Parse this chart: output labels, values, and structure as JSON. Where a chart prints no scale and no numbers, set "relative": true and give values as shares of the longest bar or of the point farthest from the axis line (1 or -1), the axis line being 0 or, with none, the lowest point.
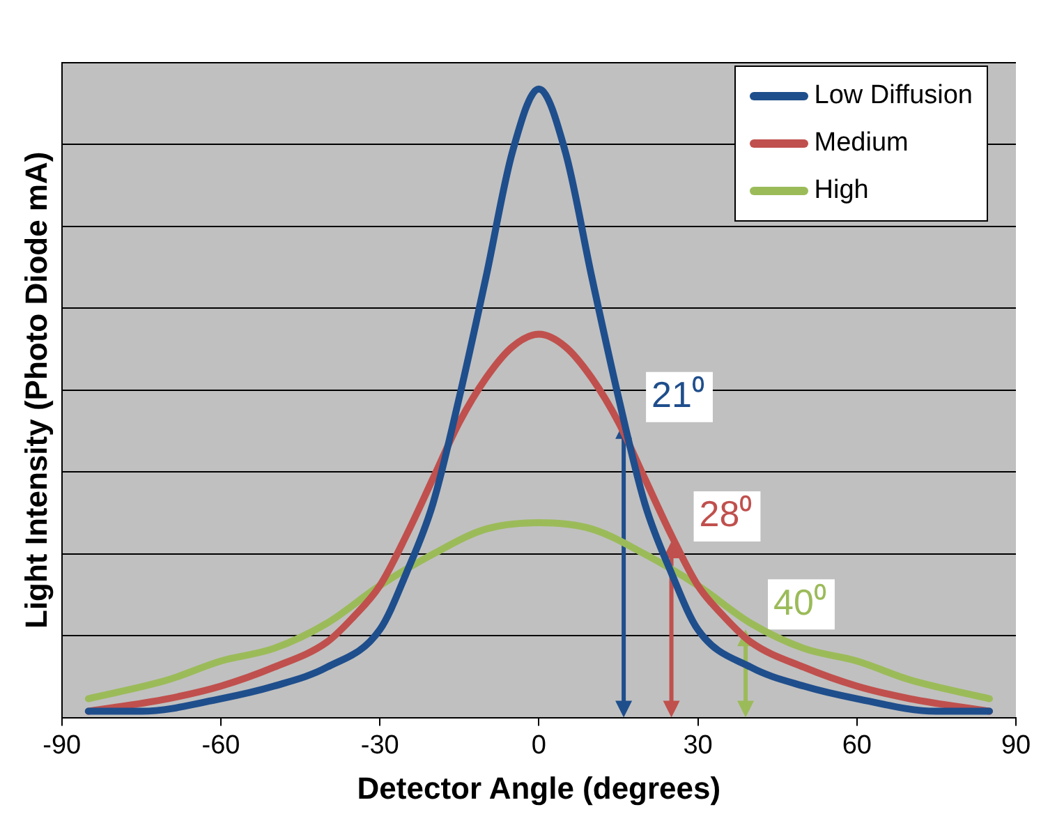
{
  "chart_data": {
    "type": "line",
    "xlabel": "Detector Angle (degrees)",
    "ylabel": "Light Intensity (Photo Diode mA)",
    "relative": true,
    "xlim": [
      -90,
      90
    ],
    "xticks": [
      -90,
      -60,
      -30,
      0,
      30,
      60,
      90
    ],
    "grid": "y",
    "legend": "top right",
    "marker": "none",
    "line_style": "solid",
    "series": [
      {
        "name": "Low Diffusion",
        "color": "#1f4e8c",
        "x": [
          -85,
          -75,
          -60,
          -50,
          -40,
          -30,
          -25,
          -20,
          -15,
          -10,
          -5,
          0,
          5,
          10,
          15,
          20,
          25,
          30,
          40,
          50,
          60,
          75,
          85
        ],
        "values": [
          0.01,
          0.01,
          0.03,
          0.05,
          0.08,
          0.14,
          0.23,
          0.34,
          0.51,
          0.7,
          0.9,
          1,
          0.9,
          0.7,
          0.51,
          0.34,
          0.23,
          0.14,
          0.08,
          0.05,
          0.03,
          0.01,
          0.01
        ]
      },
      {
        "name": "Medium",
        "color": "#c0504d",
        "x": [
          -85,
          -70,
          -60,
          -50,
          -40,
          -35,
          -30,
          -25,
          -20,
          -15,
          -10,
          -5,
          0,
          5,
          10,
          15,
          20,
          25,
          30,
          35,
          40,
          50,
          60,
          70,
          85
        ],
        "values": [
          0.01,
          0.03,
          0.05,
          0.08,
          0.12,
          0.16,
          0.21,
          0.29,
          0.38,
          0.47,
          0.54,
          0.59,
          0.61,
          0.59,
          0.54,
          0.47,
          0.38,
          0.29,
          0.21,
          0.16,
          0.12,
          0.08,
          0.05,
          0.03,
          0.01
        ]
      },
      {
        "name": "High",
        "color": "#9bbb59",
        "x": [
          -85,
          -70,
          -60,
          -50,
          -40,
          -30,
          -20,
          -10,
          0,
          10,
          20,
          30,
          40,
          50,
          60,
          70,
          85
        ],
        "values": [
          0.03,
          0.06,
          0.09,
          0.11,
          0.15,
          0.21,
          0.26,
          0.3,
          0.31,
          0.3,
          0.26,
          0.21,
          0.15,
          0.11,
          0.09,
          0.06,
          0.03
        ]
      }
    ],
    "annotations": [
      {
        "text": "21⁰",
        "x": 16,
        "y": 0.47
      },
      {
        "text": "28⁰",
        "x": 25,
        "y": 0.28
      },
      {
        "text": "40⁰",
        "x": 39,
        "y": 0.14
      }
    ]
  }
}
